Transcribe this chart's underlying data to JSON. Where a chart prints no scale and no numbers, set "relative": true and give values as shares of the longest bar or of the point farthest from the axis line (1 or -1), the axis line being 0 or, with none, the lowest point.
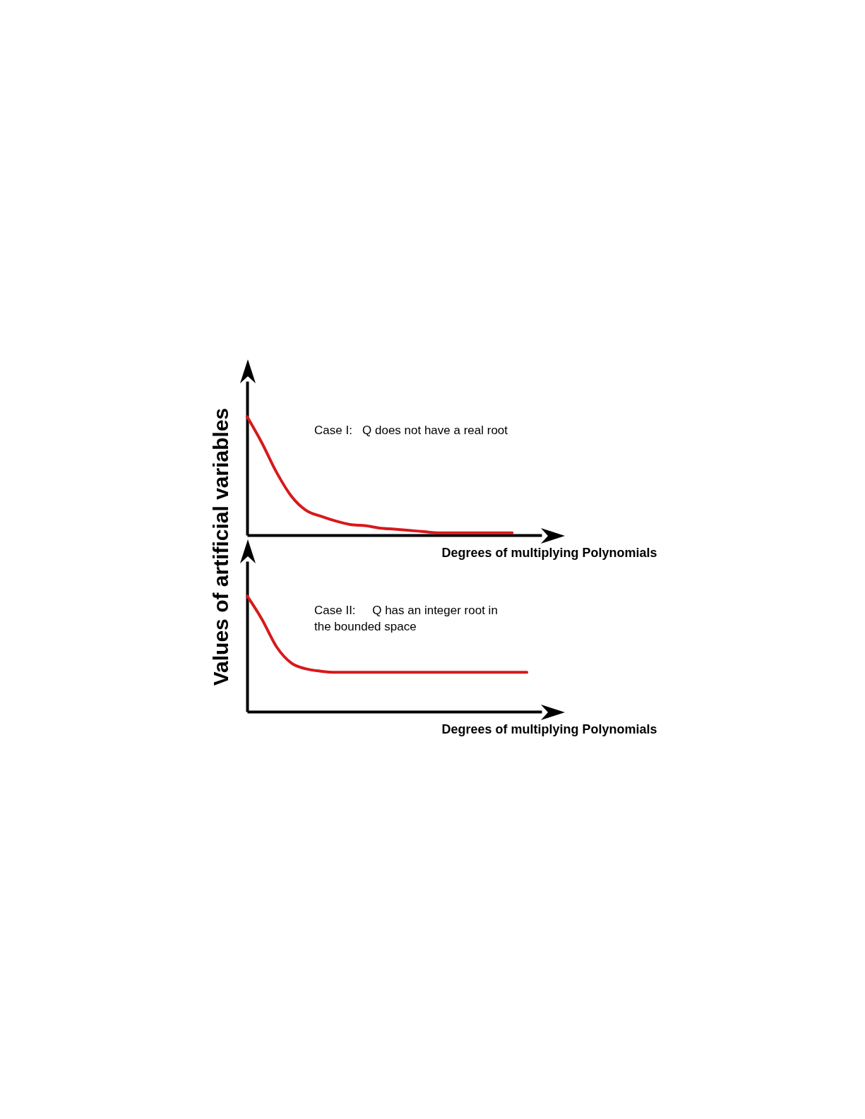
{
  "chart_data": [
    {
      "type": "line",
      "relative": true,
      "ylabel": "Values of artificial variables",
      "xlabel": "Degrees of multiplying Polynomials",
      "annotations": [
        "Case I:   Q does not have a real root"
      ],
      "categories": [
        null,
        null,
        null,
        null,
        null,
        null,
        null,
        null,
        null,
        null,
        null,
        null,
        null,
        null,
        null,
        null,
        null,
        null,
        null,
        null,
        null
      ],
      "series": [
        {
          "color": "#d7191c",
          "values": [
            1,
            0.78,
            0.53,
            0.33,
            0.21,
            0.16,
            0.12,
            0.09,
            0.08,
            0.06,
            0.05,
            0.04,
            0.03,
            0.02,
            0.02,
            0.02,
            0.02,
            0.02,
            0.02,
            null,
            null
          ]
        }
      ]
    },
    {
      "type": "line",
      "relative": true,
      "xlabel": "Degrees of multiplying Polynomials",
      "annotations": [
        "Case II:     Q has an integer root in\nthe bounded space"
      ],
      "categories": [
        null,
        null,
        null,
        null,
        null,
        null,
        null,
        null,
        null,
        null,
        null,
        null,
        null,
        null,
        null,
        null,
        null,
        null,
        null,
        null,
        null
      ],
      "series": [
        {
          "color": "#d7191c",
          "values": [
            1,
            0.8,
            0.56,
            0.42,
            0.37,
            0.35,
            0.34,
            0.34,
            0.34,
            0.34,
            0.34,
            0.34,
            0.34,
            0.34,
            0.34,
            0.34,
            0.34,
            0.34,
            0.34,
            0.34,
            null
          ]
        }
      ]
    }
  ]
}
